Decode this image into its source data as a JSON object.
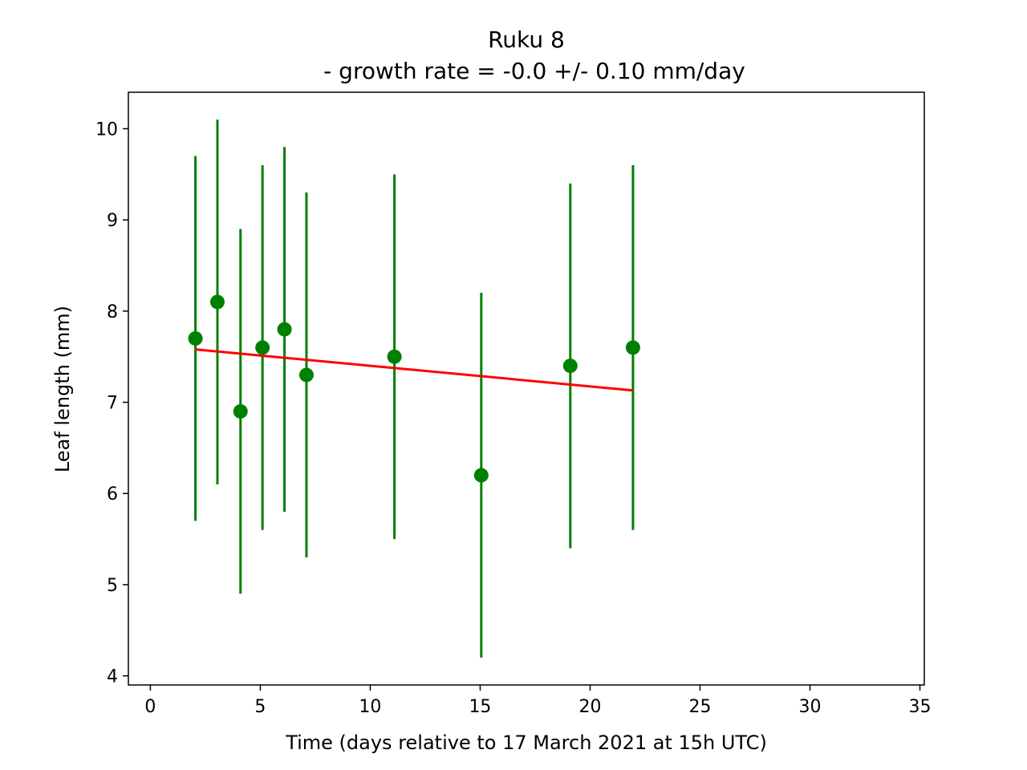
{
  "chart_data": {
    "type": "scatter",
    "title_line1": "Ruku 8",
    "title_line2": "-  growth rate = -0.0 +/- 0.10 mm/day",
    "xlabel": "Time (days relative to 17 March 2021 at 15h UTC)",
    "ylabel": "Leaf length (mm)",
    "xlim": [
      -1,
      35.2
    ],
    "ylim": [
      3.9,
      10.4
    ],
    "xticks": [
      0,
      5,
      10,
      15,
      20,
      25,
      30,
      35
    ],
    "yticks": [
      4,
      5,
      6,
      7,
      8,
      9,
      10
    ],
    "grid": false,
    "series": [
      {
        "kind": "errorbar",
        "color": "#008000",
        "points": [
          {
            "x": 2.05,
            "y": 7.7,
            "err": 2.0
          },
          {
            "x": 3.05,
            "y": 8.1,
            "err": 2.0
          },
          {
            "x": 4.1,
            "y": 6.9,
            "err": 2.0
          },
          {
            "x": 5.1,
            "y": 7.6,
            "err": 2.0
          },
          {
            "x": 6.1,
            "y": 7.8,
            "err": 2.0
          },
          {
            "x": 7.1,
            "y": 7.3,
            "err": 2.0
          },
          {
            "x": 11.1,
            "y": 7.5,
            "err": 2.0
          },
          {
            "x": 15.05,
            "y": 6.2,
            "err": 2.0
          },
          {
            "x": 19.1,
            "y": 7.4,
            "err": 2.0
          },
          {
            "x": 21.95,
            "y": 7.6,
            "err": 2.0
          }
        ]
      },
      {
        "kind": "fit-line",
        "color": "#ff0000",
        "points": [
          {
            "x": 2.05,
            "y": 7.58
          },
          {
            "x": 21.95,
            "y": 7.13
          }
        ]
      }
    ]
  }
}
